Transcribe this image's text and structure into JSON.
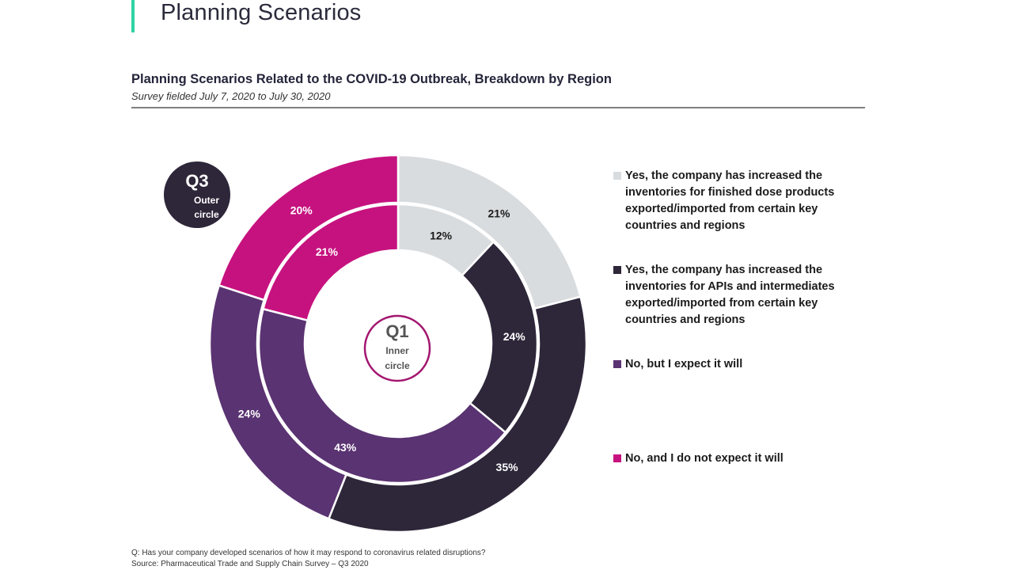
{
  "page": {
    "title": "Planning Scenarios",
    "accent_color": "#2fd3a3"
  },
  "chart_data": {
    "type": "pie",
    "subtype": "nested-donut",
    "title": "Planning Scenarios Related to the COVID-19 Outbreak, Breakdown by Region",
    "subtitle": "Survey fielded July 7, 2020 to July 30, 2020",
    "categories": [
      "Yes, the company has increased the inventories for finished dose products exported/imported from certain key countries and regions",
      "Yes, the company has increased the inventories for APIs and intermediates exported/imported from certain key countries and regions",
      "No, but I expect it will",
      "No, and I do not expect it will"
    ],
    "colors": [
      "#d9dcdf",
      "#2e2639",
      "#5a3372",
      "#c6127f"
    ],
    "label_colors": [
      "#1b1b1b",
      "#ffffff",
      "#ffffff",
      "#ffffff"
    ],
    "series": [
      {
        "name": "Q3",
        "ring": "outer",
        "values": [
          21,
          35,
          24,
          20
        ],
        "labels": [
          "21%",
          "35%",
          "24%",
          "20%"
        ]
      },
      {
        "name": "Q1",
        "ring": "inner",
        "values": [
          12,
          24,
          43,
          21
        ],
        "labels": [
          "12%",
          "24%",
          "43%",
          "21%"
        ]
      }
    ],
    "legend_position": "right",
    "outer_badge": {
      "title": "Q3",
      "line1": "Outer",
      "line2": "circle",
      "fill": "#2e2639"
    },
    "inner_badge": {
      "title": "Q1",
      "line1": "Inner",
      "line2": "circle",
      "stroke": "#a3166f"
    }
  },
  "footnotes": {
    "question": "Q: Has your company developed scenarios of how it may respond to coronavirus related disruptions?",
    "source": "Source: Pharmaceutical Trade and Supply Chain Survey – Q3 2020"
  }
}
